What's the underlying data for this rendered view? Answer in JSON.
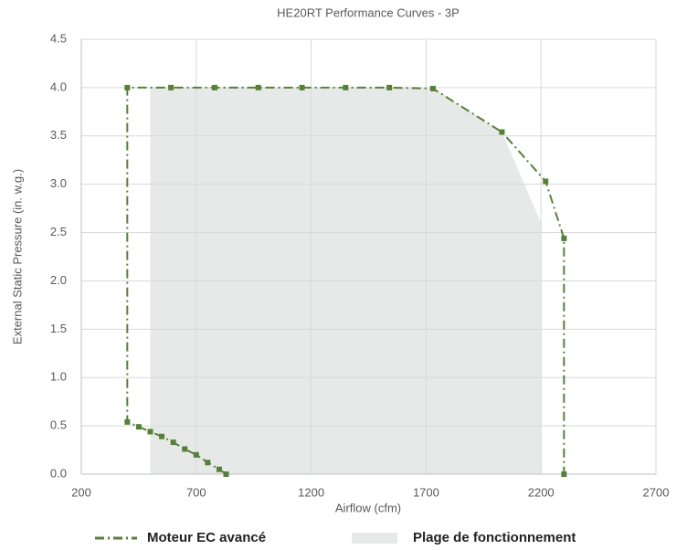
{
  "chart_data": {
    "type": "line",
    "title": "HE20RT Performance Curves - 3P",
    "x_label": "Airflow (cfm)",
    "y_label": "External Static Pressure (in. w.g.)",
    "xlim": [
      200,
      2700
    ],
    "xticks": [
      200,
      700,
      1200,
      1700,
      2200,
      2700
    ],
    "ylim": [
      0,
      4.5
    ],
    "yticks": [
      {
        "value": 0,
        "label": "0.0"
      },
      {
        "value": 0.5,
        "label": "0.5"
      },
      {
        "value": 1,
        "label": "1.0"
      },
      {
        "value": 1.5,
        "label": "1.5"
      },
      {
        "value": 2,
        "label": "2.0"
      },
      {
        "value": 2.5,
        "label": "2.5"
      },
      {
        "value": 3,
        "label": "3.0"
      },
      {
        "value": 3.5,
        "label": "3.5"
      },
      {
        "value": 4,
        "label": "4.0"
      },
      {
        "value": 4.5,
        "label": "4.5"
      }
    ],
    "grid": true,
    "legend": "bottom",
    "series": [
      {
        "name": "Plage de fonctionnement",
        "type": "area",
        "color": "#e7e9e8",
        "x": [
          500,
          500,
          1730,
          2030,
          2200,
          2200
        ],
        "values": [
          0,
          4.0,
          4.0,
          3.54,
          2.6,
          0
        ]
      },
      {
        "name": "Moteur EC avancé",
        "type": "line",
        "color": "#548235",
        "x": [
          830,
          800,
          750,
          700,
          650,
          600,
          550,
          500,
          450,
          400,
          400,
          590,
          780,
          970,
          1160,
          1350,
          1540,
          1730,
          2030,
          2220,
          2300,
          2300
        ],
        "values": [
          0,
          0.05,
          0.12,
          0.2,
          0.26,
          0.33,
          0.39,
          0.44,
          0.49,
          0.54,
          4.0,
          4.0,
          4.0,
          4.0,
          4.0,
          4.0,
          4.0,
          3.99,
          3.54,
          3.03,
          2.44,
          0
        ]
      }
    ]
  }
}
